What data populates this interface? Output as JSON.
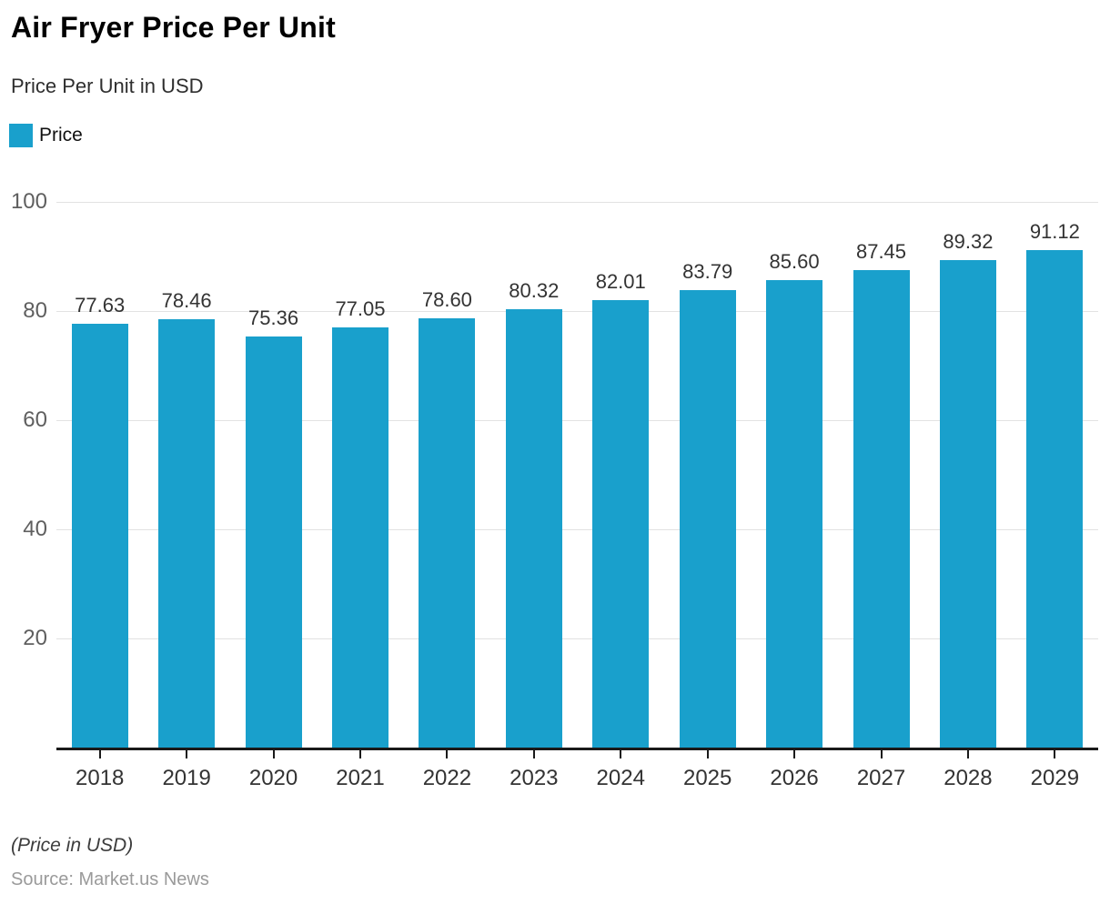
{
  "header": {
    "title": "Air Fryer Price Per Unit",
    "subtitle": "Price Per Unit in USD",
    "legend": {
      "label": "Price",
      "color": "#19A0CC"
    }
  },
  "chart_data": {
    "type": "bar",
    "title": "Air Fryer Price Per Unit",
    "subtitle": "Price Per Unit in USD",
    "series_name": "Price",
    "categories": [
      "2018",
      "2019",
      "2020",
      "2021",
      "2022",
      "2023",
      "2024",
      "2025",
      "2026",
      "2027",
      "2028",
      "2029"
    ],
    "values": [
      77.63,
      78.46,
      75.36,
      77.05,
      78.6,
      80.32,
      82.01,
      83.79,
      85.6,
      87.45,
      89.32,
      91.12
    ],
    "data_labels": [
      "77.63",
      "78.46",
      "75.36",
      "77.05",
      "78.60",
      "80.32",
      "82.01",
      "83.79",
      "85.60",
      "87.45",
      "89.32",
      "91.12"
    ],
    "xlabel": "",
    "ylabel": "",
    "ylim": [
      0,
      100
    ],
    "yticks": [
      20,
      40,
      60,
      80,
      100
    ],
    "grid": true,
    "legend_position": "top-left",
    "bar_color": "#19A0CC",
    "axis_color": "#1a1a1a",
    "gridline_color": "#e2e2e2"
  },
  "footer": {
    "note": "(Price in USD)",
    "source": "Source: Market.us News"
  }
}
